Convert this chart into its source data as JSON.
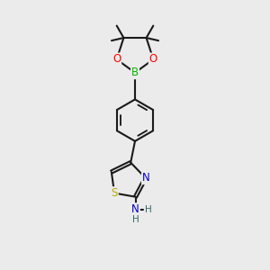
{
  "background_color": "#ebebeb",
  "bond_color": "#1a1a1a",
  "bond_width": 1.5,
  "colors": {
    "B": "#00bb00",
    "O": "#ff0000",
    "N": "#0000cc",
    "S": "#bbaa00",
    "H": "#336666"
  },
  "font_size_atom": 8.5,
  "font_size_h": 7.5
}
